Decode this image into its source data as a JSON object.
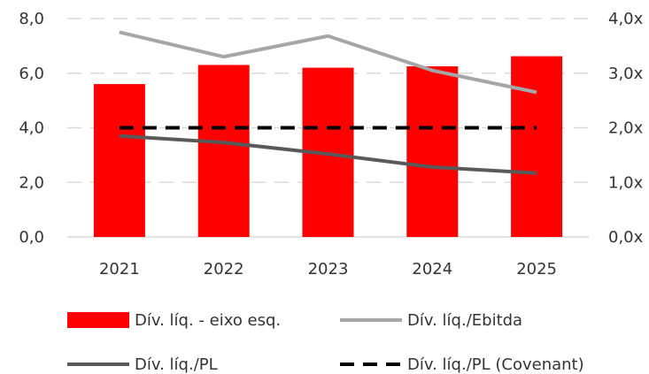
{
  "chart_data": {
    "type": "bar",
    "categories": [
      "2021",
      "2022",
      "2023",
      "2024",
      "2025"
    ],
    "series": [
      {
        "name": "Dív. líq. - eixo esq.",
        "kind": "bar",
        "axis": "left",
        "color": "#ff0000",
        "values": [
          5.6,
          6.3,
          6.2,
          6.25,
          6.62
        ]
      },
      {
        "name": "Dív. líq./Ebitda",
        "kind": "line",
        "axis": "right",
        "color": "#a6a6a6",
        "dash": "solid",
        "values": [
          3.75,
          3.3,
          3.68,
          3.05,
          2.65
        ]
      },
      {
        "name": "Dív. líq./PL",
        "kind": "line",
        "axis": "right",
        "color": "#595959",
        "dash": "solid",
        "values": [
          1.85,
          1.73,
          1.52,
          1.28,
          1.17
        ]
      },
      {
        "name": "Dív. líq./PL (Covenant)",
        "kind": "line",
        "axis": "right",
        "color": "#000000",
        "dash": "dashed",
        "values": [
          2.0,
          2.0,
          2.0,
          2.0,
          2.0
        ]
      }
    ],
    "y_left": {
      "ticks": [
        "0,0",
        "2,0",
        "4,0",
        "6,0",
        "8,0"
      ],
      "ylim": [
        0,
        8
      ]
    },
    "y_right": {
      "ticks": [
        "0,0x",
        "1,0x",
        "2,0x",
        "3,0x",
        "4,0x"
      ],
      "ylim": [
        0,
        4
      ]
    },
    "grid": true,
    "legend_position": "bottom"
  }
}
